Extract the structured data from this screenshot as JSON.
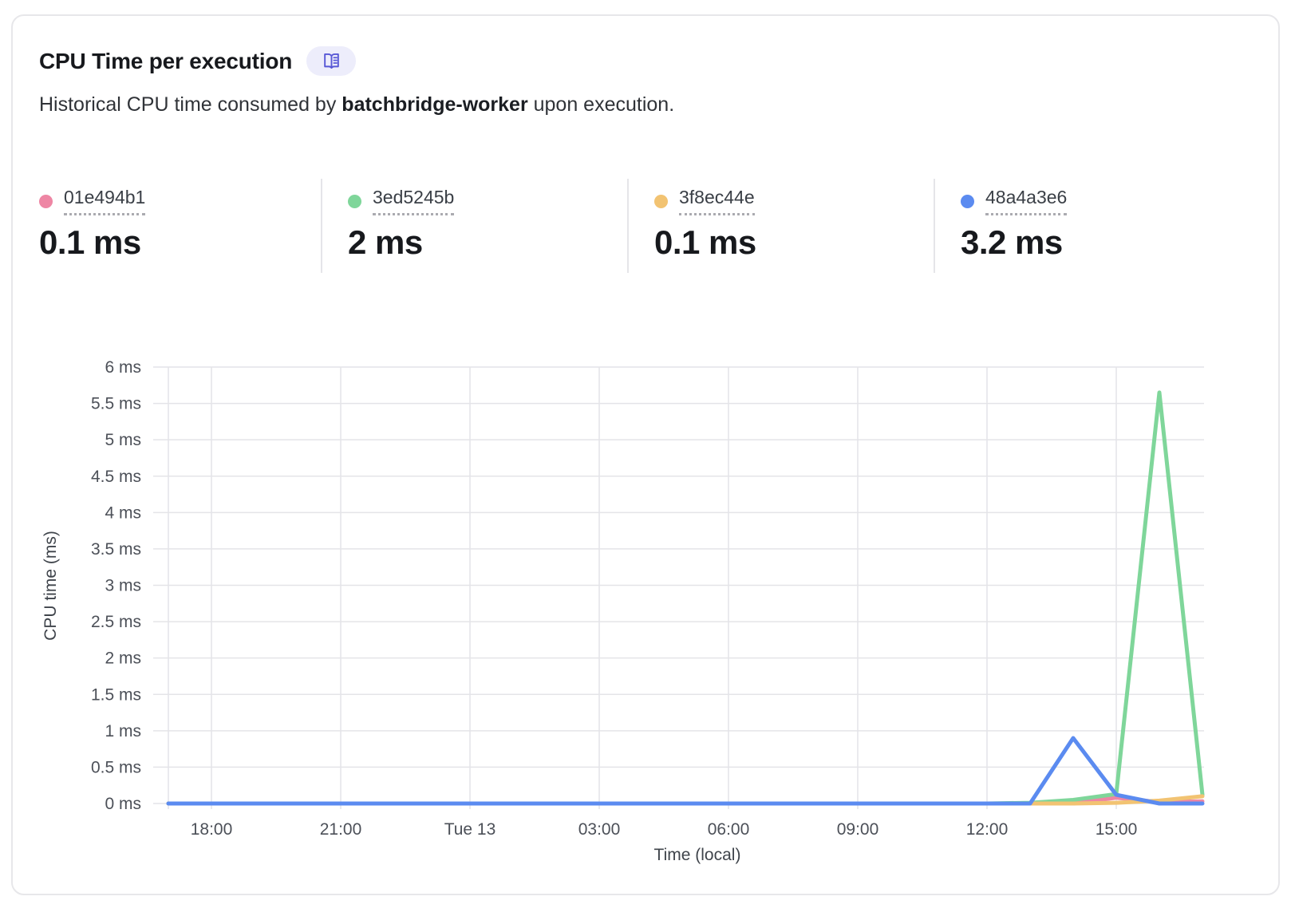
{
  "card": {
    "title": "CPU Time per execution",
    "badge_icon": "book-icon",
    "subtitle_prefix": "Historical CPU time consumed by ",
    "subtitle_bold": "batchbridge-worker",
    "subtitle_suffix": " upon execution."
  },
  "legend": {
    "items": [
      {
        "id": "01e494b1",
        "value": "0.1 ms",
        "color": "#EE86A4"
      },
      {
        "id": "3ed5245b",
        "value": "2 ms",
        "color": "#7FD69A"
      },
      {
        "id": "3f8ec44e",
        "value": "0.1 ms",
        "color": "#F2C372"
      },
      {
        "id": "48a4a3e6",
        "value": "3.2 ms",
        "color": "#5B8BF0"
      }
    ]
  },
  "chart_data": {
    "type": "line",
    "title": "CPU Time per execution",
    "xlabel": "Time (local)",
    "ylabel": "CPU time (ms)",
    "ylim": [
      0,
      6
    ],
    "grid": true,
    "y_ticks": [
      {
        "value": 0,
        "label": "0 ms"
      },
      {
        "value": 0.5,
        "label": "0.5 ms"
      },
      {
        "value": 1,
        "label": "1 ms"
      },
      {
        "value": 1.5,
        "label": "1.5 ms"
      },
      {
        "value": 2,
        "label": "2 ms"
      },
      {
        "value": 2.5,
        "label": "2.5 ms"
      },
      {
        "value": 3,
        "label": "3 ms"
      },
      {
        "value": 3.5,
        "label": "3.5 ms"
      },
      {
        "value": 4,
        "label": "4 ms"
      },
      {
        "value": 4.5,
        "label": "4.5 ms"
      },
      {
        "value": 5,
        "label": "5 ms"
      },
      {
        "value": 5.5,
        "label": "5.5 ms"
      },
      {
        "value": 6,
        "label": "6 ms"
      }
    ],
    "hours_per_point": 1,
    "x_ticks": [
      {
        "hour_offset": 1,
        "label": "18:00"
      },
      {
        "hour_offset": 4,
        "label": "21:00"
      },
      {
        "hour_offset": 7,
        "label": "Tue 13"
      },
      {
        "hour_offset": 10,
        "label": "03:00"
      },
      {
        "hour_offset": 13,
        "label": "06:00"
      },
      {
        "hour_offset": 16,
        "label": "09:00"
      },
      {
        "hour_offset": 19,
        "label": "12:00"
      },
      {
        "hour_offset": 22,
        "label": "15:00"
      }
    ],
    "series": [
      {
        "name": "01e494b1",
        "color": "#EE86A4",
        "summary_value": "0.1 ms",
        "values": [
          0,
          0,
          0,
          0,
          0,
          0,
          0,
          0,
          0,
          0,
          0,
          0,
          0,
          0,
          0,
          0,
          0,
          0,
          0,
          0,
          0,
          0,
          0.08,
          0.02,
          0.03
        ]
      },
      {
        "name": "3ed5245b",
        "color": "#7FD69A",
        "summary_value": "2 ms",
        "values": [
          0,
          0,
          0,
          0,
          0,
          0,
          0,
          0,
          0,
          0,
          0,
          0,
          0,
          0,
          0,
          0,
          0,
          0,
          0,
          0,
          0.01,
          0.05,
          0.13,
          5.65,
          0.12
        ]
      },
      {
        "name": "3f8ec44e",
        "color": "#F2C372",
        "summary_value": "0.1 ms",
        "values": [
          0,
          0,
          0,
          0,
          0,
          0,
          0,
          0,
          0,
          0,
          0,
          0,
          0,
          0,
          0,
          0,
          0,
          0,
          0,
          0,
          0,
          0,
          0.01,
          0.04,
          0.1
        ]
      },
      {
        "name": "48a4a3e6",
        "color": "#5B8BF0",
        "summary_value": "3.2 ms",
        "values": [
          0,
          0,
          0,
          0,
          0,
          0,
          0,
          0,
          0,
          0,
          0,
          0,
          0,
          0,
          0,
          0,
          0,
          0,
          0,
          0,
          0,
          0.9,
          0.12,
          0,
          0
        ]
      }
    ],
    "colors": {
      "grid": "#E4E4E8",
      "axis_text": "#4C5058",
      "axis_title_text": "#3F444B"
    }
  }
}
